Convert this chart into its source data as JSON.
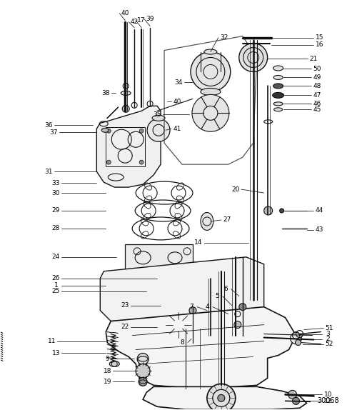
{
  "diagram_id": "30068",
  "bg": "#ffffff",
  "lc": "#111111",
  "tc": "#000000",
  "fig_w": 5.0,
  "fig_h": 5.74,
  "dpi": 100
}
